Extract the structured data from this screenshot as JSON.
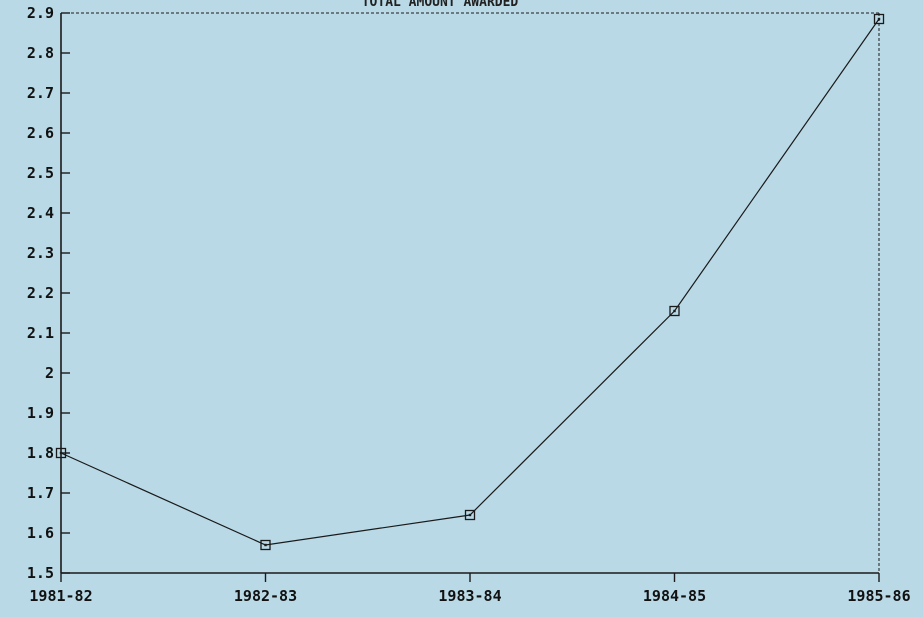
{
  "chart_data": {
    "type": "line",
    "title": "TOTAL AMOUNT AWARDED",
    "categories": [
      "1981-82",
      "1982-83",
      "1983-84",
      "1984-85",
      "1985-86"
    ],
    "series": [
      {
        "values": [
          1.8,
          1.57,
          1.645,
          2.155,
          2.885
        ]
      }
    ],
    "yticks": [
      1.5,
      1.6,
      1.7,
      1.8,
      1.9,
      2,
      2.1,
      2.2,
      2.3,
      2.4,
      2.5,
      2.6,
      2.7,
      2.8,
      2.9
    ],
    "ylim": [
      1.5,
      2.9
    ],
    "marker": "square",
    "grid": false,
    "colors": {
      "background": "#b9d9e6",
      "line": "#1a1a1a",
      "axis": "#1a1a1a"
    }
  }
}
